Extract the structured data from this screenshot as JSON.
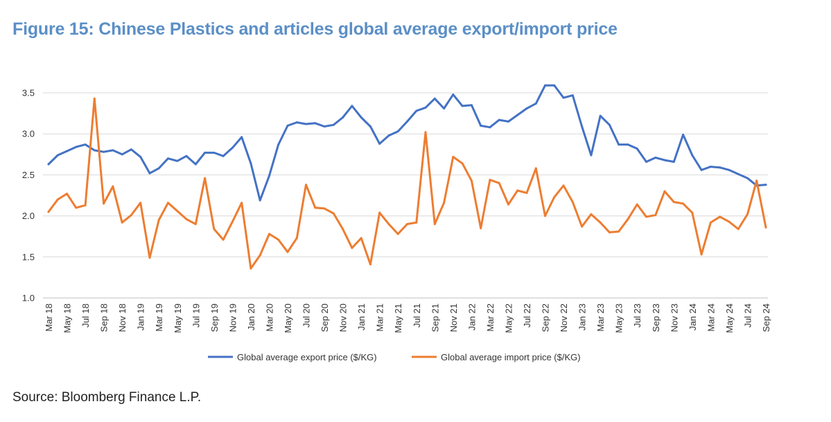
{
  "title": "Figure 15: Chinese Plastics and articles global average export/import price",
  "source": "Source: Bloomberg Finance L.P.",
  "chart_data": {
    "type": "line",
    "title": "Figure 15: Chinese Plastics and articles global average export/import price",
    "xlabel": "",
    "ylabel": "",
    "ylim": [
      1.0,
      3.5
    ],
    "y_ticks": [
      "1.0",
      "1.5",
      "2.0",
      "2.5",
      "3.0",
      "3.5"
    ],
    "grid": true,
    "legend_position": "bottom",
    "x": [
      "Mar 18",
      "Apr 18",
      "May 18",
      "Jun 18",
      "Jul 18",
      "Aug 18",
      "Sep 18",
      "Oct 18",
      "Nov 18",
      "Dec 18",
      "Jan 19",
      "Feb 19",
      "Mar 19",
      "Apr 19",
      "May 19",
      "Jun 19",
      "Jul 19",
      "Aug 19",
      "Sep 19",
      "Oct 19",
      "Nov 19",
      "Dec 19",
      "Jan 20",
      "Feb 20",
      "Mar 20",
      "Apr 20",
      "May 20",
      "Jun 20",
      "Jul 20",
      "Aug 20",
      "Sep 20",
      "Oct 20",
      "Nov 20",
      "Dec 20",
      "Jan 21",
      "Feb 21",
      "Mar 21",
      "Apr 21",
      "May 21",
      "Jun 21",
      "Jul 21",
      "Aug 21",
      "Sep 21",
      "Oct 21",
      "Nov 21",
      "Dec 21",
      "Jan 22",
      "Feb 22",
      "Mar 22",
      "Apr 22",
      "May 22",
      "Jun 22",
      "Jul 22",
      "Aug 22",
      "Sep 22",
      "Oct 22",
      "Nov 22",
      "Dec 22",
      "Jan 23",
      "Feb 23",
      "Mar 23",
      "Apr 23",
      "May 23",
      "Jun 23",
      "Jul 23",
      "Aug 23",
      "Sep 23",
      "Oct 23",
      "Nov 23",
      "Dec 23",
      "Jan 24",
      "Feb 24",
      "Mar 24",
      "Apr 24",
      "May 24",
      "Jun 24",
      "Jul 24",
      "Aug 24",
      "Sep 24"
    ],
    "x_tick_labels": [
      "Mar 18",
      "May 18",
      "Jul 18",
      "Sep 18",
      "Nov 18",
      "Jan 19",
      "Mar 19",
      "May 19",
      "Jul 19",
      "Sep 19",
      "Nov 19",
      "Jan 20",
      "Mar 20",
      "May 20",
      "Jul 20",
      "Sep 20",
      "Nov 20",
      "Jan 21",
      "Mar 21",
      "May 21",
      "Jul 21",
      "Sep 21",
      "Nov 21",
      "Jan 22",
      "Mar 22",
      "May 22",
      "Jul 22",
      "Sep 22",
      "Nov 22",
      "Jan 23",
      "Mar 23",
      "May 23",
      "Jul 23",
      "Sep 23",
      "Nov 23",
      "Jan 24",
      "Mar 24",
      "May 24",
      "Jul 24",
      "Sep 24"
    ],
    "series": [
      {
        "name": "Global average export price ($/KG)",
        "color": "#4472c4",
        "values": [
          2.63,
          2.74,
          2.79,
          2.84,
          2.87,
          2.8,
          2.78,
          2.8,
          2.75,
          2.81,
          2.72,
          2.52,
          2.58,
          2.7,
          2.67,
          2.73,
          2.63,
          2.77,
          2.77,
          2.73,
          2.83,
          2.96,
          2.64,
          2.19,
          2.49,
          2.87,
          3.1,
          3.14,
          3.12,
          3.13,
          3.09,
          3.11,
          3.2,
          3.34,
          3.2,
          3.09,
          2.88,
          2.98,
          3.03,
          3.15,
          3.28,
          3.32,
          3.43,
          3.31,
          3.48,
          3.34,
          3.35,
          3.1,
          3.08,
          3.17,
          3.15,
          3.23,
          3.31,
          3.37,
          3.59,
          3.59,
          3.44,
          3.47,
          3.09,
          2.74,
          3.22,
          3.11,
          2.87,
          2.87,
          2.82,
          2.66,
          2.71,
          2.68,
          2.66,
          2.99,
          2.74,
          2.56,
          2.6,
          2.59,
          2.56,
          2.51,
          2.46,
          2.37,
          2.38
        ]
      },
      {
        "name": "Global average import price ($/KG)",
        "color": "#ed7d31",
        "values": [
          2.05,
          2.2,
          2.27,
          2.1,
          2.13,
          3.43,
          2.15,
          2.36,
          1.92,
          2.01,
          2.16,
          1.49,
          1.95,
          2.16,
          2.06,
          1.96,
          1.9,
          2.46,
          1.84,
          1.71,
          1.93,
          2.16,
          1.36,
          1.52,
          1.78,
          1.71,
          1.56,
          1.73,
          2.38,
          2.1,
          2.09,
          2.03,
          1.84,
          1.61,
          1.73,
          1.41,
          2.04,
          1.9,
          1.78,
          1.9,
          1.92,
          3.02,
          1.9,
          2.16,
          2.72,
          2.64,
          2.43,
          1.85,
          2.44,
          2.4,
          2.14,
          2.31,
          2.28,
          2.58,
          2.0,
          2.23,
          2.37,
          2.17,
          1.87,
          2.02,
          1.92,
          1.8,
          1.81,
          1.96,
          2.14,
          1.99,
          2.01,
          2.3,
          2.17,
          2.15,
          2.04,
          1.53,
          1.92,
          1.99,
          1.93,
          1.84,
          2.02,
          2.43,
          1.86
        ]
      }
    ]
  }
}
